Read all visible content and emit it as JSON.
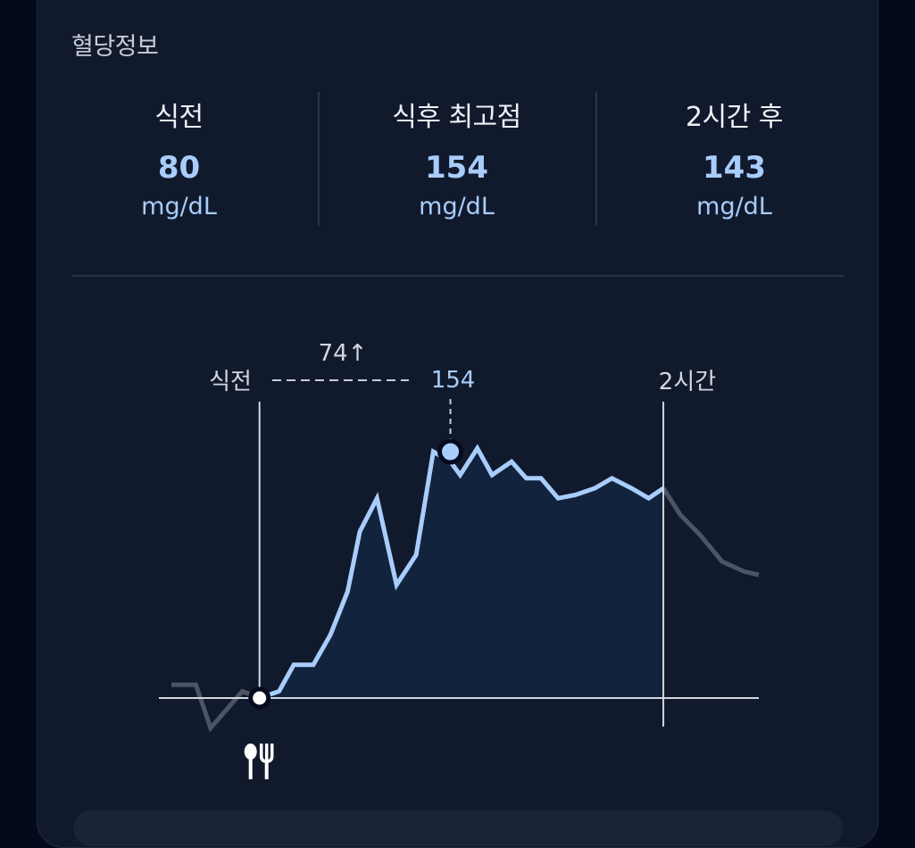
{
  "card": {
    "title": "혈당정보"
  },
  "stats": [
    {
      "label": "식전",
      "value": "80",
      "unit": "mg/dL"
    },
    {
      "label": "식후 최고점",
      "value": "154",
      "unit": "mg/dL"
    },
    {
      "label": "2시간 후",
      "value": "143",
      "unit": "mg/dL"
    }
  ],
  "chart": {
    "label_before": "식전",
    "label_2h": "2시간",
    "rise_label": "74↑",
    "peak_label": "154",
    "meal_icon": "fork-spoon-icon",
    "colors": {
      "line": "#a9cdfb",
      "fill": "#12233d",
      "outside": "#4c5566",
      "axis": "#d3d7de"
    }
  },
  "chart_data": {
    "type": "area",
    "series": [
      {
        "values": [
          {
            "x": -1.8,
            "y": 84
          },
          {
            "x": -1.3,
            "y": 84
          },
          {
            "x": -1.0,
            "y": 71
          },
          {
            "x": -0.35,
            "y": 82
          },
          {
            "x": 0.0,
            "y": 80
          },
          {
            "x": 0.4,
            "y": 82
          },
          {
            "x": 0.7,
            "y": 90
          },
          {
            "x": 1.1,
            "y": 90
          },
          {
            "x": 1.45,
            "y": 99
          },
          {
            "x": 1.8,
            "y": 112
          },
          {
            "x": 2.05,
            "y": 130
          },
          {
            "x": 2.4,
            "y": 140
          },
          {
            "x": 2.8,
            "y": 114
          },
          {
            "x": 3.2,
            "y": 123
          },
          {
            "x": 3.55,
            "y": 154
          },
          {
            "x": 3.9,
            "y": 151
          },
          {
            "x": 4.1,
            "y": 147
          },
          {
            "x": 4.45,
            "y": 155
          },
          {
            "x": 4.75,
            "y": 147
          },
          {
            "x": 5.15,
            "y": 151
          },
          {
            "x": 5.45,
            "y": 146
          },
          {
            "x": 5.75,
            "y": 146
          },
          {
            "x": 6.1,
            "y": 140
          },
          {
            "x": 6.45,
            "y": 141
          },
          {
            "x": 6.85,
            "y": 143
          },
          {
            "x": 7.2,
            "y": 146
          },
          {
            "x": 7.6,
            "y": 143
          },
          {
            "x": 7.95,
            "y": 140
          },
          {
            "x": 8.25,
            "y": 143
          },
          {
            "x": 8.6,
            "y": 135
          },
          {
            "x": 9.0,
            "y": 129
          },
          {
            "x": 9.45,
            "y": 121
          },
          {
            "x": 9.9,
            "y": 118
          },
          {
            "x": 10.2,
            "y": 117
          }
        ]
      }
    ],
    "meal_start_x": 0,
    "two_hour_x": 8.25,
    "peak": {
      "x": 3.9,
      "y": 154
    },
    "ylim": [
      65,
      170
    ],
    "xlim": [
      -1.8,
      10.2
    ]
  }
}
